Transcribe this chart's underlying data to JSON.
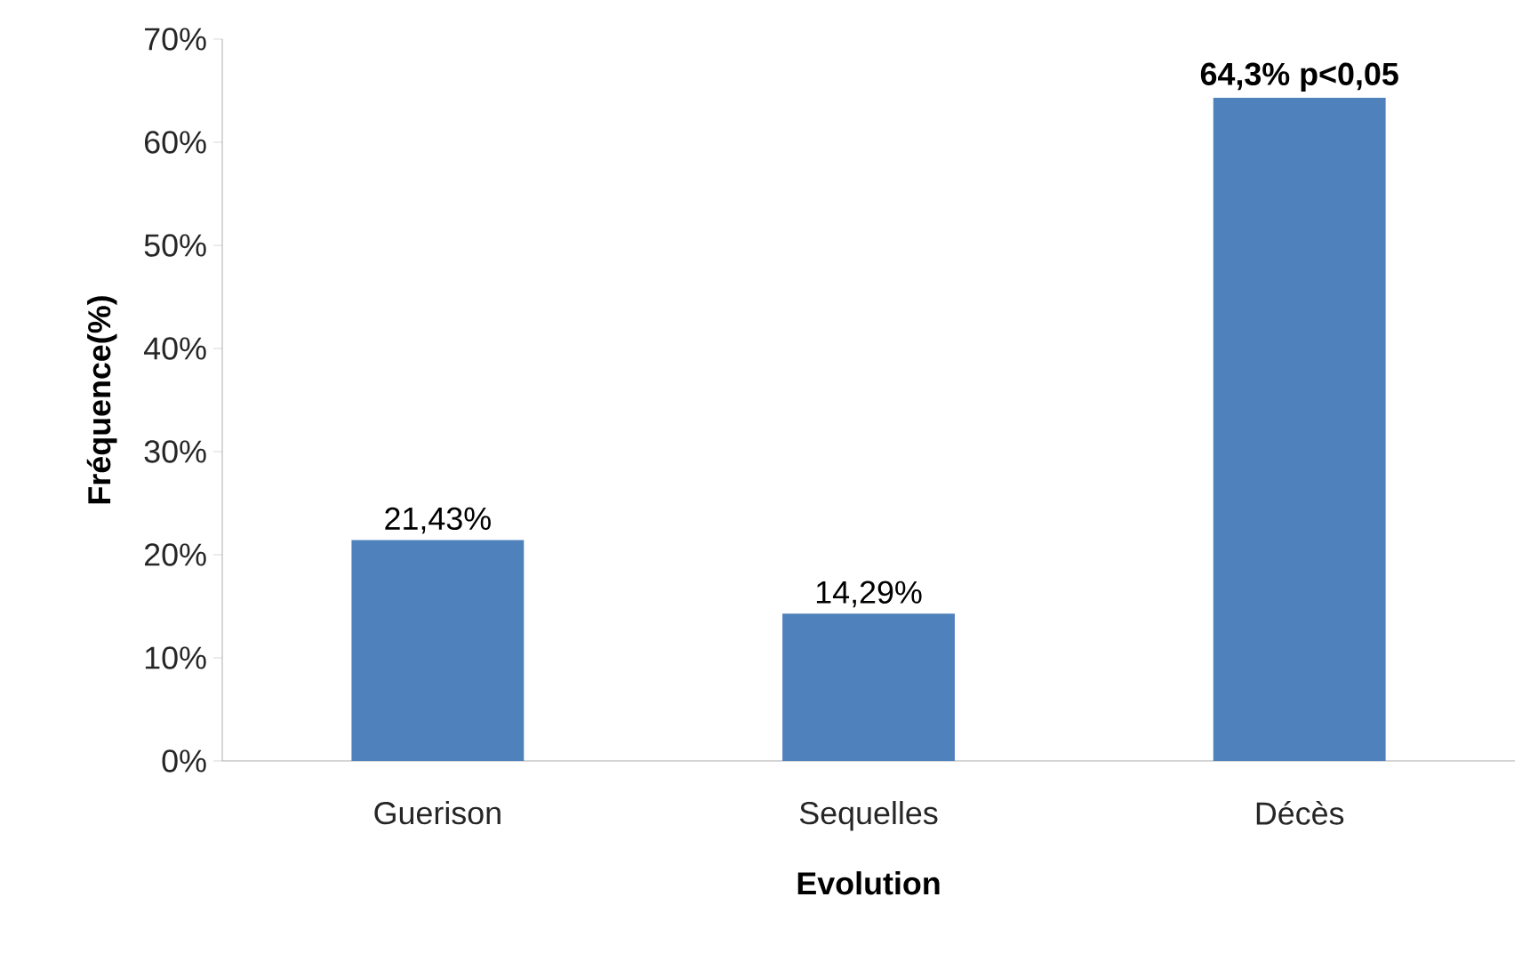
{
  "chart_data": {
    "type": "bar",
    "xlabel": "Evolution",
    "ylabel": "Fréquence(%)",
    "categories": [
      "Guerison",
      "Sequelles",
      "Décès"
    ],
    "values": [
      21.43,
      14.29,
      64.3
    ],
    "value_labels": [
      "21,43%",
      "14,29%",
      "**64,3% p<0,05**"
    ],
    "color": "#4f81bd",
    "ylim": [
      0,
      70
    ],
    "yticks": [
      {
        "value": 0,
        "label": "0%"
      },
      {
        "value": 10,
        "label": "10%"
      },
      {
        "value": 20,
        "label": "20%"
      },
      {
        "value": 30,
        "label": "30%"
      },
      {
        "value": 40,
        "label": "40%"
      },
      {
        "value": 50,
        "label": "50%"
      },
      {
        "value": 60,
        "label": "60%"
      },
      {
        "value": 70,
        "label": "70%"
      }
    ],
    "grid": false
  }
}
